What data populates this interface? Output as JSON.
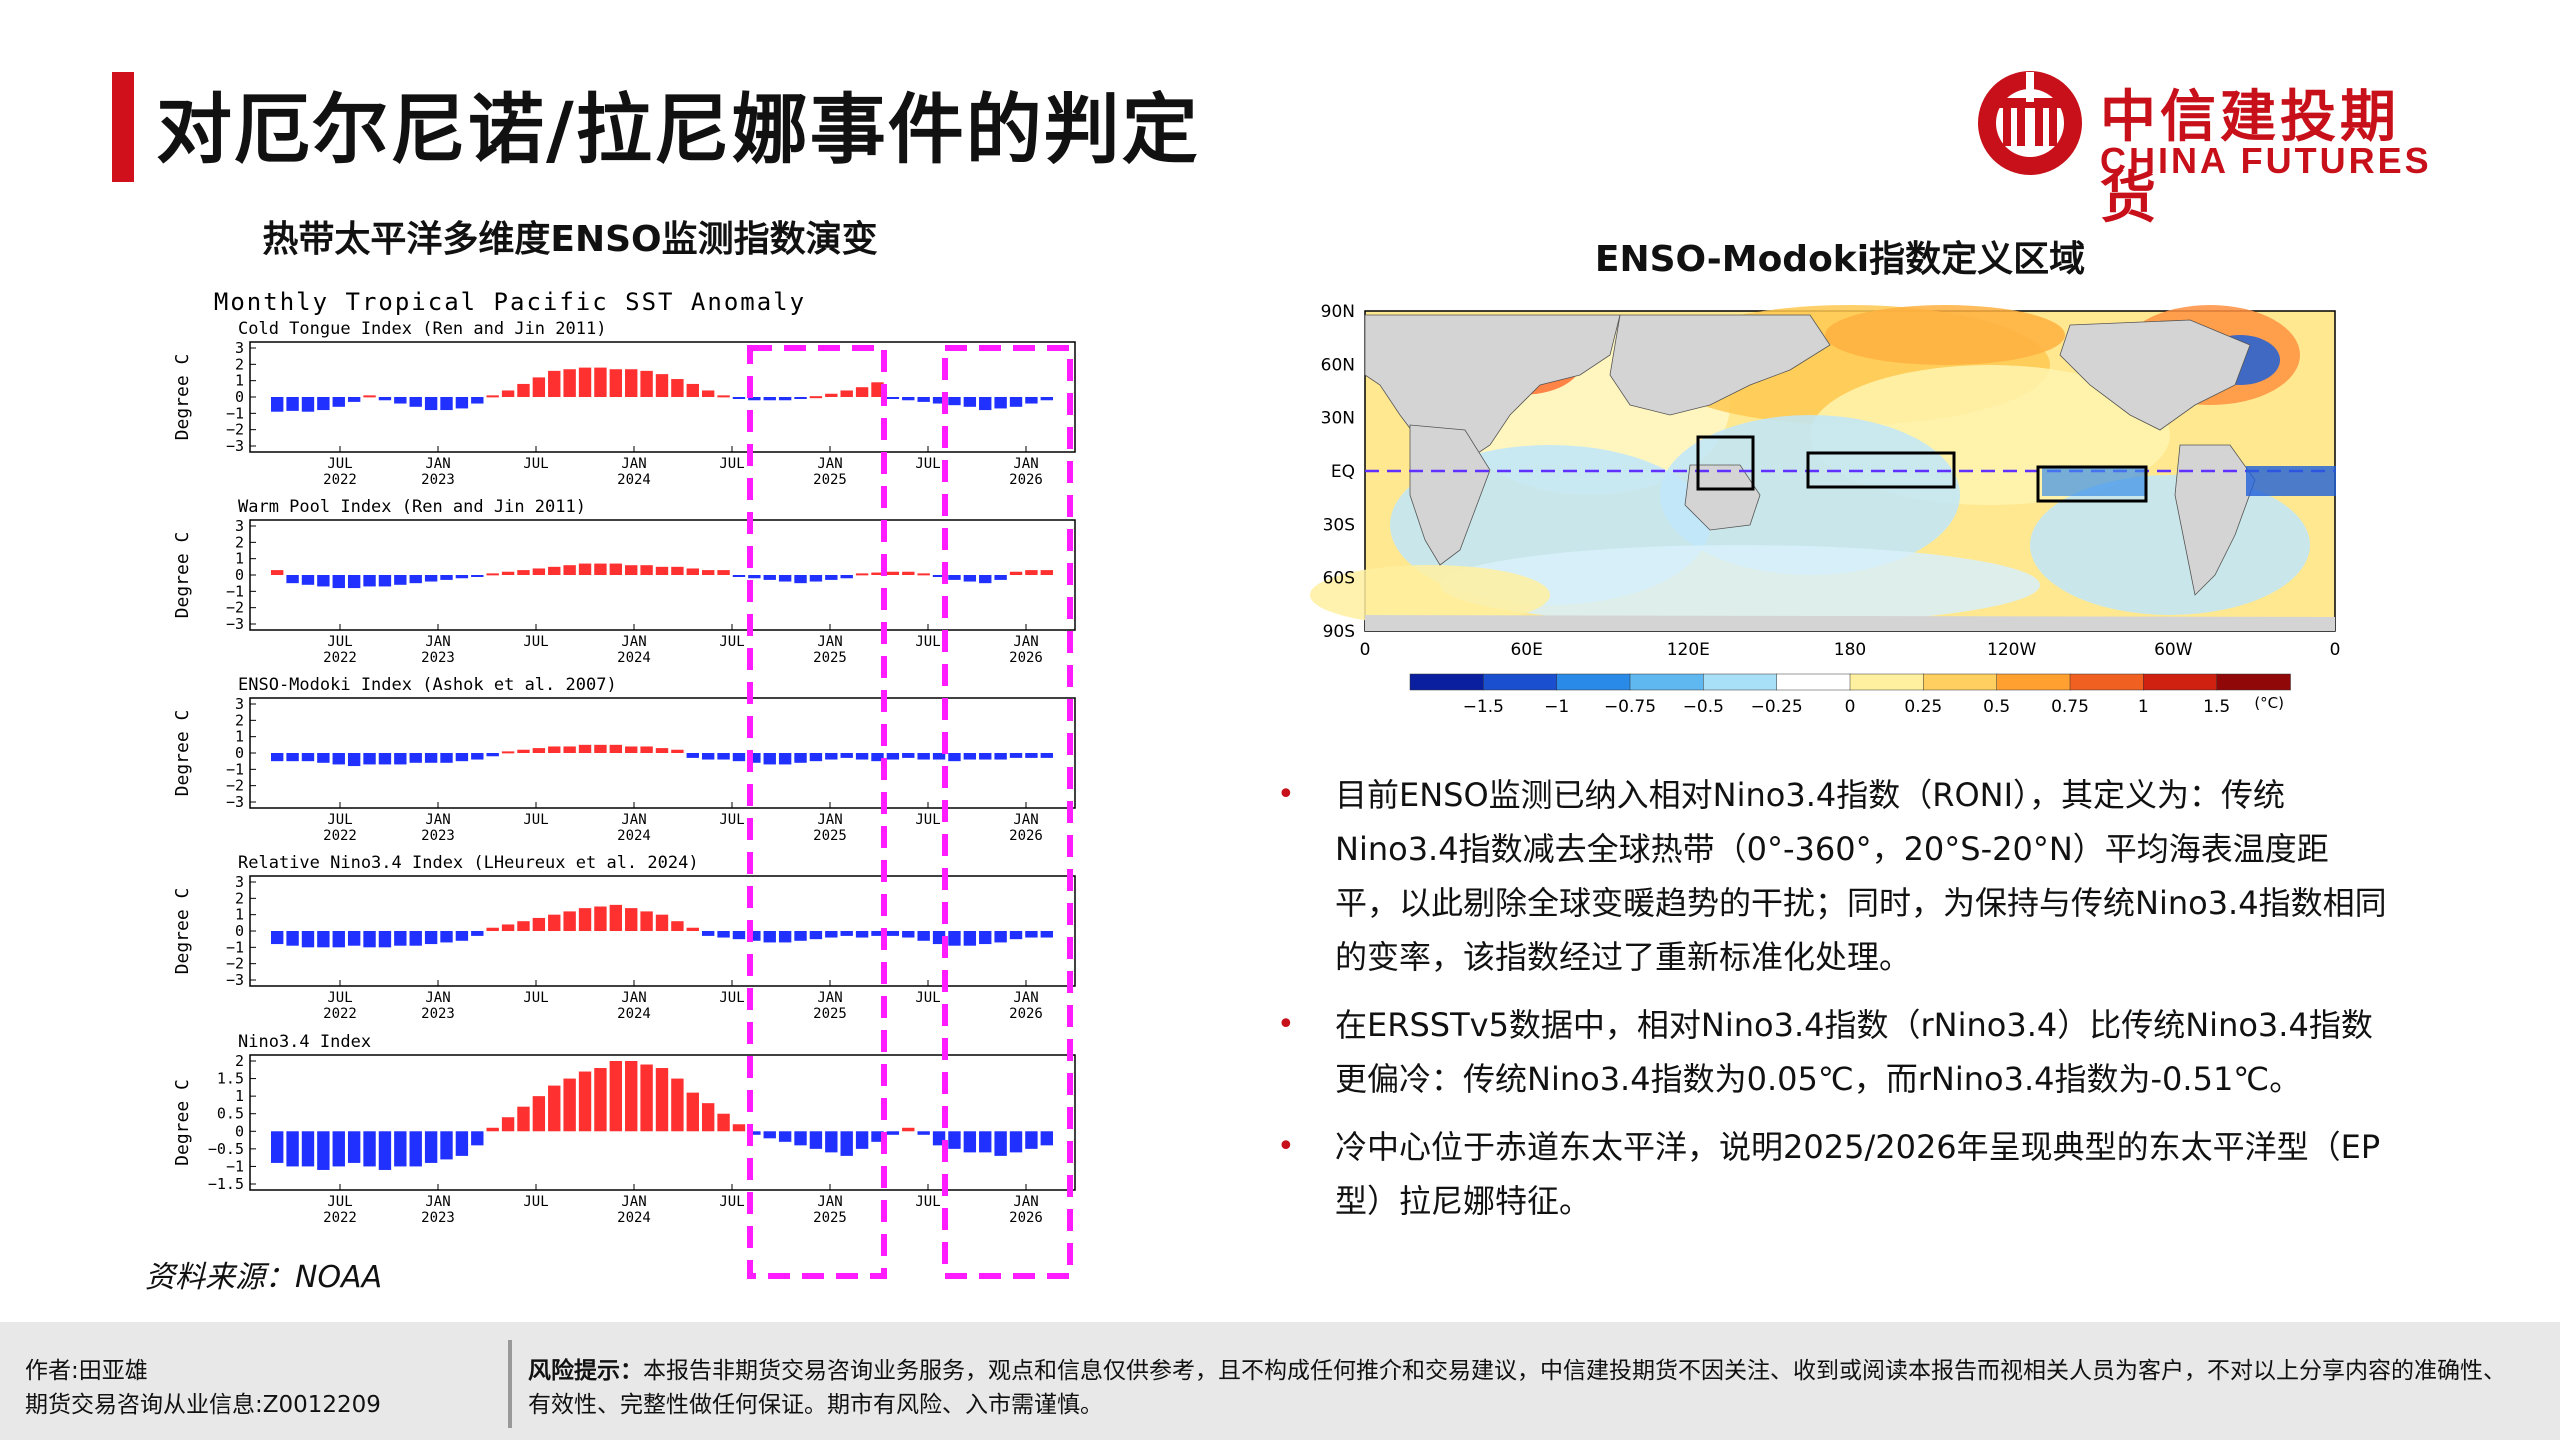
{
  "header": {
    "title": "对厄尔尼诺/拉尼娜事件的判定",
    "logo_cn": "中信建投期货",
    "logo_en": "CHINA FUTURES",
    "brand_color": "#c8101a"
  },
  "left_chart": {
    "heading": "热带太平洋多维度ENSO监测指数演变",
    "main_title": "Monthly Tropical Pacific SST Anomaly",
    "source": "资料来源：NOAA",
    "chart_data": {
      "type": "bar",
      "x_ticks": [
        "JUL 2022",
        "JAN 2023",
        "JUL",
        "JAN 2024",
        "JUL",
        "JAN 2025",
        "JUL",
        "JAN 2026"
      ],
      "x_tick_top": [
        "JUL",
        "JAN",
        "JUL",
        "JAN",
        "JUL",
        "JAN",
        "JUL",
        "JAN"
      ],
      "x_tick_bottom": [
        "2022",
        "2023",
        "",
        "2024",
        "",
        "2025",
        "",
        "2026"
      ],
      "ylabel": "Degree C",
      "positive_color": "#ff3030",
      "negative_color": "#2030ff",
      "highlight_color": "#ff1cff",
      "panels": [
        {
          "name": "Cold Tongue Index (Ren and Jin 2011)",
          "ylim": [
            -3,
            3
          ],
          "yticks": [
            "3",
            "2",
            "1",
            "0",
            "−1",
            "−2",
            "−3"
          ],
          "values": [
            -0.9,
            -0.85,
            -0.9,
            -0.8,
            -0.6,
            -0.3,
            0.1,
            -0.2,
            -0.4,
            -0.6,
            -0.8,
            -0.8,
            -0.7,
            -0.4,
            0.1,
            0.4,
            0.8,
            1.2,
            1.6,
            1.7,
            1.8,
            1.8,
            1.7,
            1.7,
            1.6,
            1.4,
            1.1,
            0.8,
            0.4,
            0.1,
            -0.1,
            -0.2,
            -0.2,
            -0.2,
            -0.1,
            0.05,
            0.2,
            0.4,
            0.6,
            0.9,
            -0.1,
            -0.2,
            -0.3,
            -0.4,
            -0.5,
            -0.6,
            -0.8,
            -0.7,
            -0.6,
            -0.4,
            -0.2
          ]
        },
        {
          "name": "Warm Pool Index (Ren and Jin 2011)",
          "ylim": [
            -3,
            3
          ],
          "yticks": [
            "3",
            "2",
            "1",
            "0",
            "−1",
            "−2",
            "−3"
          ],
          "values": [
            0.3,
            -0.5,
            -0.6,
            -0.7,
            -0.8,
            -0.8,
            -0.7,
            -0.7,
            -0.6,
            -0.5,
            -0.4,
            -0.3,
            -0.2,
            -0.1,
            0.1,
            0.2,
            0.3,
            0.4,
            0.5,
            0.6,
            0.7,
            0.7,
            0.7,
            0.6,
            0.6,
            0.5,
            0.5,
            0.4,
            0.3,
            0.3,
            -0.1,
            -0.2,
            -0.3,
            -0.4,
            -0.5,
            -0.4,
            -0.3,
            -0.2,
            0.1,
            0.15,
            0.2,
            0.2,
            0.1,
            -0.1,
            -0.3,
            -0.4,
            -0.5,
            -0.3,
            0.2,
            0.3,
            0.3
          ]
        },
        {
          "name": "ENSO-Modoki Index (Ashok et al. 2007)",
          "ylim": [
            -3,
            3
          ],
          "yticks": [
            "3",
            "2",
            "1",
            "0",
            "−1",
            "−2",
            "−3"
          ],
          "values": [
            -0.5,
            -0.5,
            -0.5,
            -0.6,
            -0.7,
            -0.8,
            -0.7,
            -0.7,
            -0.7,
            -0.6,
            -0.6,
            -0.6,
            -0.5,
            -0.4,
            -0.2,
            0.1,
            0.2,
            0.3,
            0.4,
            0.4,
            0.5,
            0.5,
            0.5,
            0.4,
            0.4,
            0.3,
            0.2,
            -0.3,
            -0.4,
            -0.4,
            -0.5,
            -0.6,
            -0.7,
            -0.7,
            -0.6,
            -0.5,
            -0.4,
            -0.3,
            -0.4,
            -0.5,
            -0.4,
            -0.3,
            -0.4,
            -0.4,
            -0.5,
            -0.4,
            -0.4,
            -0.4,
            -0.3,
            -0.3,
            -0.3
          ]
        },
        {
          "name": "Relative Nino3.4 Index (LHeureux et al. 2024)",
          "ylim": [
            -3,
            3
          ],
          "yticks": [
            "3",
            "2",
            "1",
            "0",
            "−1",
            "−2",
            "−3"
          ],
          "values": [
            -0.8,
            -0.9,
            -1.0,
            -1.0,
            -1.0,
            -0.9,
            -1.0,
            -1.0,
            -0.9,
            -0.9,
            -0.8,
            -0.7,
            -0.6,
            -0.3,
            0.2,
            0.4,
            0.6,
            0.8,
            1.0,
            1.2,
            1.4,
            1.5,
            1.6,
            1.4,
            1.2,
            1.0,
            0.6,
            0.2,
            -0.3,
            -0.4,
            -0.5,
            -0.6,
            -0.7,
            -0.7,
            -0.6,
            -0.5,
            -0.4,
            -0.3,
            -0.4,
            -0.3,
            -0.3,
            -0.4,
            -0.6,
            -0.8,
            -0.9,
            -0.9,
            -0.8,
            -0.7,
            -0.5,
            -0.4,
            -0.4
          ]
        },
        {
          "name": "Nino3.4 Index",
          "ylim": [
            -1.5,
            2
          ],
          "yticks": [
            "2",
            "1.5",
            "1",
            "0.5",
            "0",
            "−0.5",
            "−1",
            "−1.5"
          ],
          "values": [
            -0.9,
            -1.0,
            -1.0,
            -1.1,
            -1.0,
            -0.9,
            -1.0,
            -1.1,
            -1.0,
            -1.0,
            -0.9,
            -0.8,
            -0.7,
            -0.4,
            0.1,
            0.4,
            0.7,
            1.0,
            1.3,
            1.5,
            1.7,
            1.8,
            2.0,
            2.0,
            1.9,
            1.8,
            1.5,
            1.1,
            0.8,
            0.5,
            0.2,
            -0.1,
            -0.2,
            -0.3,
            -0.4,
            -0.5,
            -0.6,
            -0.7,
            -0.5,
            -0.3,
            -0.1,
            0.1,
            -0.1,
            -0.4,
            -0.5,
            -0.6,
            -0.6,
            -0.7,
            -0.6,
            -0.5,
            -0.4
          ]
        }
      ]
    }
  },
  "right_map": {
    "heading": "ENSO-Modoki指数定义区域",
    "lat_labels": [
      "90N",
      "60N",
      "30N",
      "EQ",
      "30S",
      "60S",
      "90S"
    ],
    "lon_labels": [
      "0",
      "60E",
      "120E",
      "180",
      "120W",
      "60W",
      "0"
    ],
    "colorbar_labels": [
      "−1.5",
      "−1",
      "−0.75",
      "−0.5",
      "−0.25",
      "0",
      "0.25",
      "0.5",
      "0.75",
      "1",
      "1.5"
    ],
    "colorbar_unit": "(°C)",
    "colorbar_colors": [
      "#0a1fa0",
      "#1a4fd0",
      "#2a8ae8",
      "#60b8f0",
      "#a8e0f8",
      "#ffffff",
      "#fff0a0",
      "#ffd060",
      "#ffa030",
      "#f06020",
      "#d02010",
      "#900808"
    ],
    "equator_color": "#6030ff"
  },
  "bullets": [
    "目前ENSO监测已纳入相对Nino3.4指数（RONI），其定义为：传统Nino3.4指数减去全球热带（0°-360°，20°S-20°N）平均海表温度距平，以此剔除全球变暖趋势的干扰；同时，为保持与传统Nino3.4指数相同的变率，该指数经过了重新标准化处理。",
    "在ERSSTv5数据中，相对Nino3.4指数（rNino3.4）比传统Nino3.4指数更偏冷：传统Nino3.4指数为0.05℃，而rNino3.4指数为-0.51℃。",
    "冷中心位于赤道东太平洋，说明2025/2026年呈现典型的东太平洋型（EP型）拉尼娜特征。"
  ],
  "bullet_symbol": "•",
  "footer": {
    "author": "作者:田亚雄",
    "license": "期货交易咨询从业信息:Z0012209",
    "risk_label": "风险提示：",
    "risk_text": "本报告非期货交易咨询业务服务，观点和信息仅供参考，且不构成任何推介和交易建议，中信建投期货不因关注、收到或阅读本报告而视相关人员为客户，不对以上分享内容的准确性、有效性、完整性做任何保证。期市有风险、入市需谨慎。"
  }
}
